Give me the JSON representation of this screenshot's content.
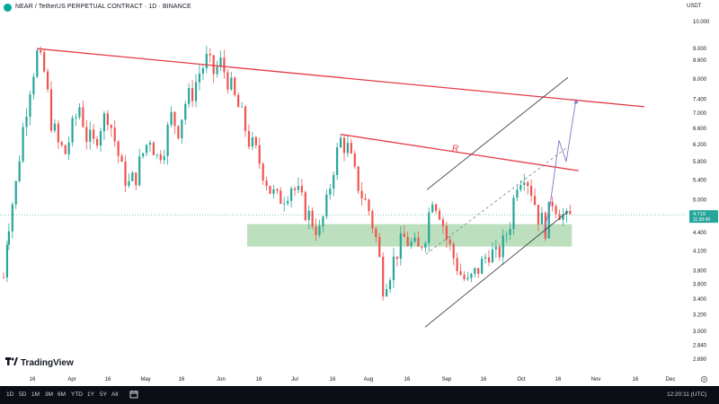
{
  "header": {
    "title": "NEAR / TetherUS PERPETUAL CONTRACT · 1D · BINANCE",
    "currency": "USDT"
  },
  "branding": "TradingView",
  "range_buttons": [
    "1D",
    "5D",
    "1M",
    "3M",
    "6M",
    "YTD",
    "1Y",
    "5Y",
    "All"
  ],
  "clock": "12:20:11 (UTC)",
  "chart_data": {
    "type": "candlestick",
    "x_ticks": [
      "16",
      "Apr",
      "16",
      "May",
      "16",
      "Jun",
      "16",
      "Jul",
      "16",
      "Aug",
      "16",
      "Sep",
      "16",
      "Oct",
      "16",
      "Nov",
      "16",
      "Dec"
    ],
    "y_ticks": [
      "10.000",
      "9.000",
      "8.600",
      "8.000",
      "7.400",
      "7.000",
      "6.600",
      "6.200",
      "5.800",
      "5.400",
      "5.000",
      "4.400",
      "4.100",
      "3.800",
      "3.600",
      "3.400",
      "3.200",
      "3.000",
      "2.840",
      "2.690"
    ],
    "y_range": [
      2.6,
      10.5
    ],
    "y_scale": "log",
    "last_price": "4.719",
    "countdown": "11:39:49",
    "colors": {
      "up": "#26a69a",
      "down": "#ef5350",
      "resistance": "#e53945",
      "support_zone": "#a5d6a7",
      "channel": "#2a2e39",
      "projection": "#7e78c8"
    },
    "resistance_label": "R",
    "support_zone": [
      4.17,
      4.55
    ],
    "price_path": [
      [
        0,
        3.7
      ],
      [
        3,
        4.6
      ],
      [
        7,
        5.3
      ],
      [
        11,
        6.6
      ],
      [
        15,
        7.8
      ],
      [
        19,
        8.8
      ],
      [
        23,
        8.2
      ],
      [
        27,
        6.8
      ],
      [
        31,
        6.2
      ],
      [
        35,
        6.0
      ],
      [
        39,
        6.6
      ],
      [
        43,
        7.2
      ],
      [
        47,
        6.4
      ],
      [
        51,
        6.2
      ],
      [
        55,
        6.7
      ],
      [
        59,
        7.0
      ],
      [
        63,
        6.3
      ],
      [
        67,
        5.6
      ],
      [
        71,
        5.3
      ],
      [
        75,
        5.5
      ],
      [
        79,
        6.0
      ],
      [
        83,
        6.4
      ],
      [
        87,
        5.9
      ],
      [
        91,
        6.2
      ],
      [
        95,
        6.9
      ],
      [
        99,
        6.6
      ],
      [
        103,
        7.3
      ],
      [
        107,
        7.6
      ],
      [
        111,
        8.2
      ],
      [
        115,
        8.6
      ],
      [
        119,
        8.2
      ],
      [
        123,
        8.5
      ],
      [
        127,
        8.0
      ],
      [
        131,
        7.4
      ],
      [
        135,
        6.9
      ],
      [
        139,
        6.3
      ],
      [
        143,
        6.0
      ],
      [
        147,
        5.6
      ],
      [
        151,
        5.2
      ],
      [
        155,
        5.0
      ],
      [
        159,
        5.1
      ],
      [
        163,
        5.3
      ],
      [
        167,
        5.1
      ],
      [
        171,
        4.8
      ],
      [
        175,
        4.6
      ],
      [
        179,
        4.4
      ],
      [
        183,
        4.9
      ],
      [
        187,
        5.7
      ],
      [
        191,
        6.3
      ],
      [
        195,
        6.1
      ],
      [
        199,
        5.5
      ],
      [
        203,
        5.1
      ],
      [
        207,
        4.8
      ],
      [
        211,
        4.3
      ],
      [
        215,
        3.6
      ],
      [
        219,
        3.8
      ],
      [
        223,
        4.1
      ],
      [
        227,
        4.3
      ],
      [
        231,
        4.2
      ],
      [
        235,
        4.1
      ],
      [
        239,
        4.4
      ],
      [
        243,
        5.1
      ],
      [
        247,
        4.8
      ],
      [
        251,
        4.3
      ],
      [
        255,
        4.0
      ],
      [
        259,
        3.75
      ],
      [
        263,
        3.6
      ],
      [
        267,
        3.75
      ],
      [
        271,
        3.9
      ],
      [
        275,
        4.1
      ],
      [
        279,
        4.0
      ],
      [
        283,
        4.2
      ],
      [
        287,
        4.6
      ],
      [
        291,
        5.4
      ],
      [
        295,
        5.6
      ],
      [
        299,
        5.2
      ],
      [
        303,
        4.7
      ],
      [
        307,
        4.5
      ],
      [
        311,
        5.0
      ],
      [
        315,
        4.8
      ],
      [
        319,
        4.6
      ],
      [
        323,
        4.72
      ]
    ]
  }
}
